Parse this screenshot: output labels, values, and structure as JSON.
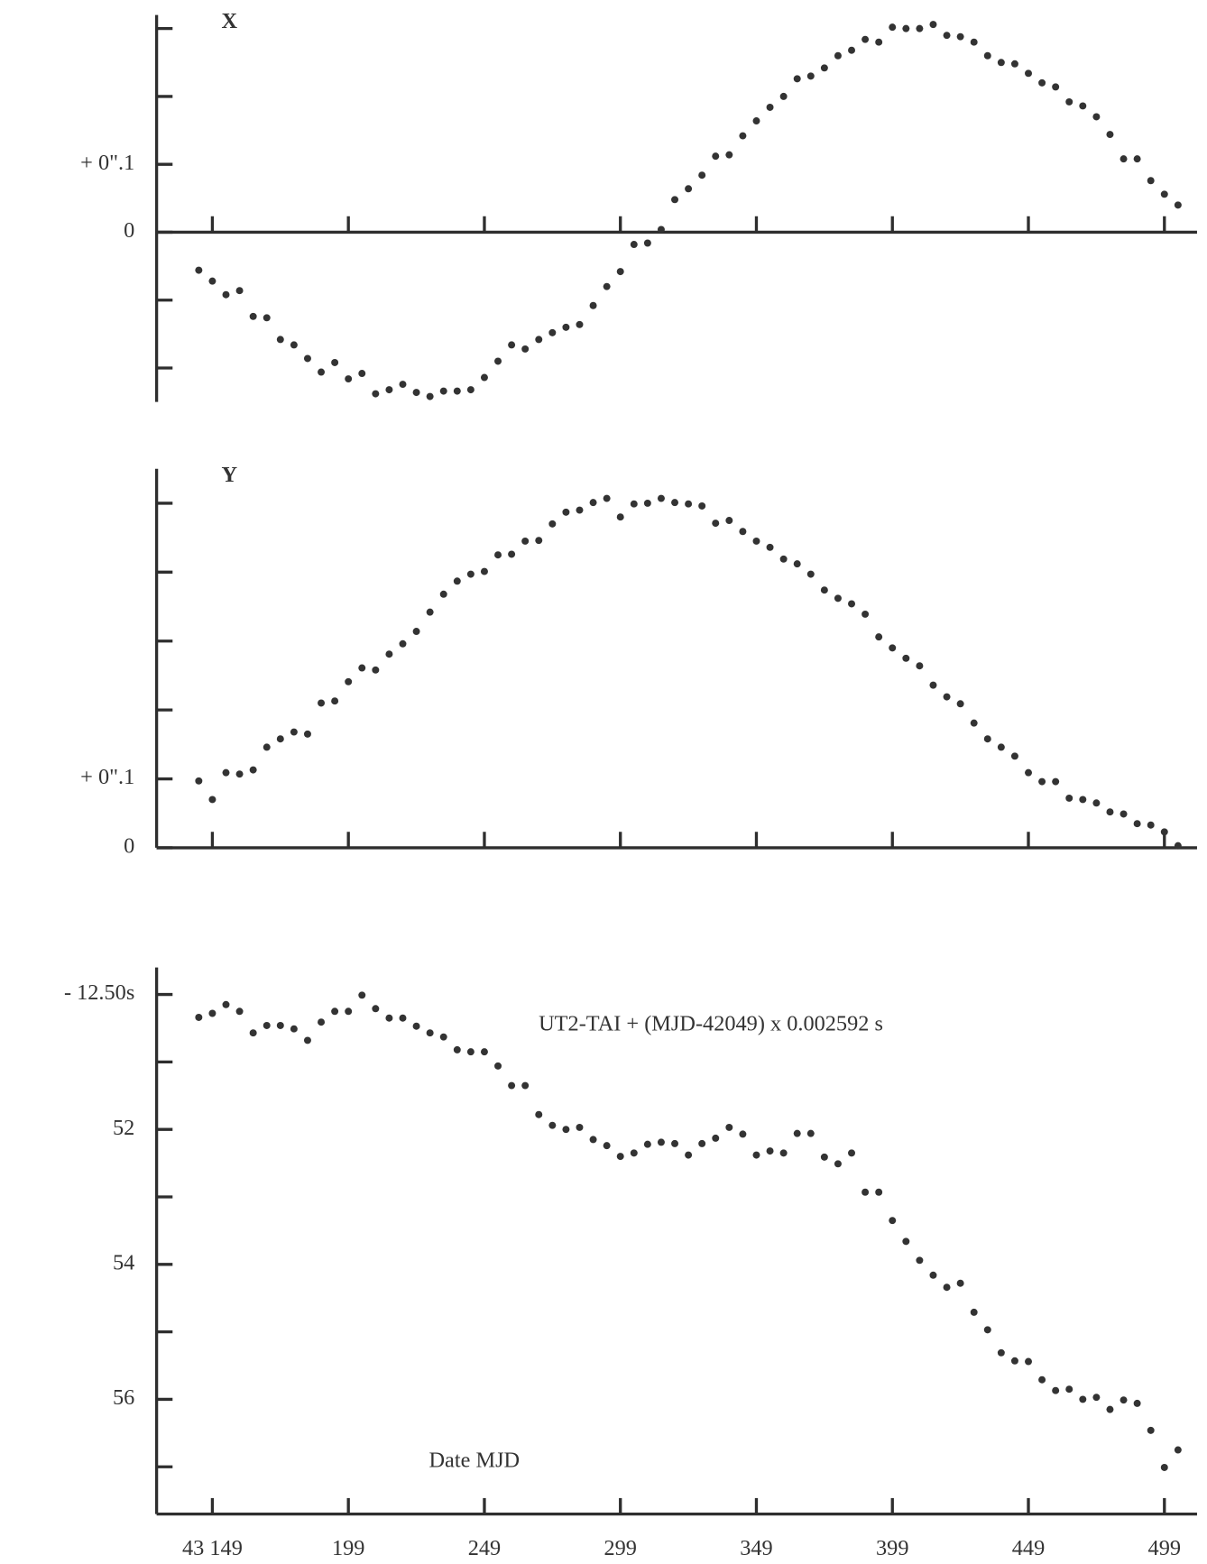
{
  "chart_data": [
    {
      "type": "scatter",
      "title": "X",
      "color": "#333333",
      "x": [
        43144,
        43149,
        43154,
        43159,
        43164,
        43169,
        43174,
        43179,
        43184,
        43189,
        43194,
        43199,
        43204,
        43209,
        43214,
        43219,
        43224,
        43229,
        43234,
        43239,
        43244,
        43249,
        43254,
        43259,
        43264,
        43269,
        43274,
        43279,
        43284,
        43289,
        43294,
        43299,
        43304,
        43309,
        43314,
        43319,
        43324,
        43329,
        43334,
        43339,
        43344,
        43349,
        43354,
        43359,
        43364,
        43369,
        43374,
        43379,
        43384,
        43389,
        43394,
        43399,
        43404,
        43409,
        43414,
        43419,
        43424,
        43429,
        43434,
        43439,
        43444,
        43449,
        43454,
        43459,
        43464,
        43469,
        43474,
        43479,
        43484,
        43489,
        43494,
        43499,
        43504
      ],
      "values": [
        -0.056,
        -0.072,
        -0.092,
        -0.086,
        -0.124,
        -0.126,
        -0.158,
        -0.166,
        -0.186,
        -0.206,
        -0.192,
        -0.216,
        -0.208,
        -0.238,
        -0.232,
        -0.224,
        -0.236,
        -0.242,
        -0.234,
        -0.234,
        -0.232,
        -0.214,
        -0.19,
        -0.166,
        -0.172,
        -0.158,
        -0.148,
        -0.14,
        -0.136,
        -0.108,
        -0.08,
        -0.058,
        -0.018,
        -0.016,
        0.004,
        0.048,
        0.064,
        0.084,
        0.112,
        0.114,
        0.142,
        0.164,
        0.184,
        0.2,
        0.226,
        0.23,
        0.242,
        0.26,
        0.268,
        0.284,
        0.28,
        0.302,
        0.3,
        0.3,
        0.306,
        0.29,
        0.288,
        0.28,
        0.26,
        0.25,
        0.248,
        0.234,
        0.22,
        0.214,
        0.192,
        0.186,
        0.17,
        0.144,
        0.108,
        0.108,
        0.076,
        0.056,
        0.04
      ],
      "xlim": [
        43128.5,
        43511
      ],
      "ylim": [
        -0.25,
        0.32
      ],
      "yticks": [
        {
          "value": -0.2,
          "label": null
        },
        {
          "value": -0.1,
          "label": null
        },
        0,
        {
          "value": 0.1,
          "label": "+ 0\".1"
        },
        {
          "value": 0.2,
          "label": null
        },
        {
          "value": 0.3,
          "label": null
        }
      ]
    },
    {
      "type": "scatter",
      "title": "Y",
      "color": "#333333",
      "x": [
        43144,
        43149,
        43154,
        43159,
        43164,
        43169,
        43174,
        43179,
        43184,
        43189,
        43194,
        43199,
        43204,
        43209,
        43214,
        43219,
        43224,
        43229,
        43234,
        43239,
        43244,
        43249,
        43254,
        43259,
        43264,
        43269,
        43274,
        43279,
        43284,
        43289,
        43294,
        43299,
        43304,
        43309,
        43314,
        43319,
        43324,
        43329,
        43334,
        43339,
        43344,
        43349,
        43354,
        43359,
        43364,
        43369,
        43374,
        43379,
        43384,
        43389,
        43394,
        43399,
        43404,
        43409,
        43414,
        43419,
        43424,
        43429,
        43434,
        43439,
        43444,
        43449,
        43454,
        43459,
        43464,
        43469,
        43474,
        43479,
        43484,
        43489,
        43494,
        43499,
        43504
      ],
      "values": [
        0.097,
        0.07,
        0.109,
        0.107,
        0.113,
        0.146,
        0.158,
        0.168,
        0.165,
        0.21,
        0.213,
        0.241,
        0.261,
        0.258,
        0.281,
        0.296,
        0.314,
        0.342,
        0.368,
        0.387,
        0.397,
        0.401,
        0.425,
        0.426,
        0.445,
        0.446,
        0.47,
        0.487,
        0.49,
        0.501,
        0.507,
        0.48,
        0.499,
        0.5,
        0.507,
        0.501,
        0.499,
        0.496,
        0.471,
        0.475,
        0.459,
        0.445,
        0.436,
        0.419,
        0.412,
        0.397,
        0.374,
        0.362,
        0.354,
        0.339,
        0.306,
        0.29,
        0.275,
        0.264,
        0.236,
        0.219,
        0.209,
        0.181,
        0.158,
        0.146,
        0.133,
        0.109,
        0.096,
        0.096,
        0.072,
        0.07,
        0.065,
        0.052,
        0.049,
        0.035,
        0.033,
        0.023,
        0.003
      ],
      "xlim": [
        43128.5,
        43511
      ],
      "ylim": [
        0,
        0.55
      ],
      "yticks": [
        0,
        {
          "value": 0.1,
          "label": "+ 0\".1"
        },
        {
          "value": 0.2,
          "label": null
        },
        {
          "value": 0.3,
          "label": null
        },
        {
          "value": 0.4,
          "label": null
        },
        {
          "value": 0.5,
          "label": null
        }
      ]
    },
    {
      "type": "scatter",
      "annotation": "UT2-TAI + (MJD-42049) x 0.002592 s",
      "x_label": "Date MJD",
      "color": "#333333",
      "x": [
        43144,
        43149,
        43154,
        43159,
        43164,
        43169,
        43174,
        43179,
        43184,
        43189,
        43194,
        43199,
        43204,
        43209,
        43214,
        43219,
        43224,
        43229,
        43234,
        43239,
        43244,
        43249,
        43254,
        43259,
        43264,
        43269,
        43274,
        43279,
        43284,
        43289,
        43294,
        43299,
        43304,
        43309,
        43314,
        43319,
        43324,
        43329,
        43334,
        43339,
        43344,
        43349,
        43354,
        43359,
        43364,
        43369,
        43374,
        43379,
        43384,
        43389,
        43394,
        43399,
        43404,
        43409,
        43414,
        43419,
        43424,
        43429,
        43434,
        43439,
        43444,
        43449,
        43454,
        43459,
        43464,
        43469,
        43474,
        43479,
        43484,
        43489,
        43494,
        43499,
        43504
      ],
      "values": [
        -12.5034,
        -12.5028,
        -12.5015,
        -12.5025,
        -12.5057,
        -12.5046,
        -12.5046,
        -12.5051,
        -12.5068,
        -12.5041,
        -12.5025,
        -12.5025,
        -12.5001,
        -12.5021,
        -12.5035,
        -12.5035,
        -12.5047,
        -12.5057,
        -12.5063,
        -12.5082,
        -12.5085,
        -12.5085,
        -12.5106,
        -12.5135,
        -12.5135,
        -12.5178,
        -12.5194,
        -12.52,
        -12.5197,
        -12.5215,
        -12.5224,
        -12.524,
        -12.5235,
        -12.5222,
        -12.5219,
        -12.5221,
        -12.5238,
        -12.5221,
        -12.5213,
        -12.5197,
        -12.5207,
        -12.5238,
        -12.5232,
        -12.5235,
        -12.5206,
        -12.5206,
        -12.5241,
        -12.5251,
        -12.5235,
        -12.5293,
        -12.5293,
        -12.5335,
        -12.5366,
        -12.5394,
        -12.5416,
        -12.5434,
        -12.5428,
        -12.5471,
        -12.5497,
        -12.5531,
        -12.5543,
        -12.5544,
        -12.5571,
        -12.5587,
        -12.5585,
        -12.56,
        -12.5597,
        -12.5615,
        -12.5601,
        -12.5606,
        -12.5646,
        -12.5701,
        -12.5675
      ],
      "xlim": [
        43128.5,
        43511
      ],
      "xticks": [
        {
          "value": 43149,
          "label": "43 149"
        },
        {
          "value": 43199,
          "label": "199"
        },
        {
          "value": 43249,
          "label": "249"
        },
        {
          "value": 43299,
          "label": "299"
        },
        {
          "value": 43349,
          "label": "349"
        },
        {
          "value": 43399,
          "label": "399"
        },
        {
          "value": 43449,
          "label": "449"
        },
        {
          "value": 43499,
          "label": "499"
        }
      ],
      "ylim": [
        -12.577,
        -12.496
      ],
      "yticks": [
        {
          "value": -12.5,
          "label": "- 12.50s"
        },
        {
          "value": -12.51,
          "label": null
        },
        {
          "value": -12.52,
          "label": "52"
        },
        {
          "value": -12.53,
          "label": null
        },
        {
          "value": -12.54,
          "label": "54"
        },
        {
          "value": -12.55,
          "label": null
        },
        {
          "value": -12.56,
          "label": "56"
        },
        {
          "value": -12.57,
          "label": null
        }
      ]
    }
  ]
}
